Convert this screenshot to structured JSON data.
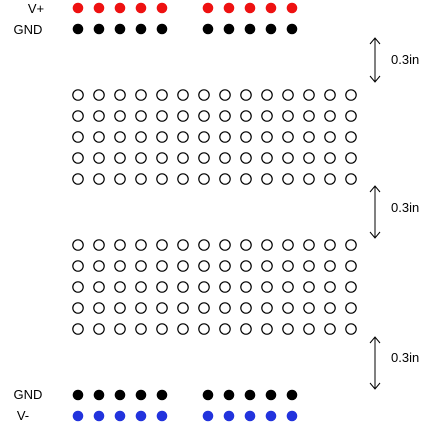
{
  "labels": {
    "top_positive": "V+",
    "top_ground": "GND",
    "bottom_ground": "GND",
    "bottom_negative": "V-"
  },
  "dimensions": [
    {
      "text": "0.3in"
    },
    {
      "text": "0.3in"
    },
    {
      "text": "0.3in"
    }
  ],
  "rails": {
    "holes_per_group": 5,
    "groups_per_row": 2
  },
  "terminal_blocks": {
    "rows": 5,
    "columns": 14
  },
  "colors": {
    "positive": "#ee1111",
    "ground": "#000000",
    "negative": "#2233dd",
    "hole_outline": "#000000",
    "hole_fill": "#ffffff",
    "text": "#000000"
  }
}
